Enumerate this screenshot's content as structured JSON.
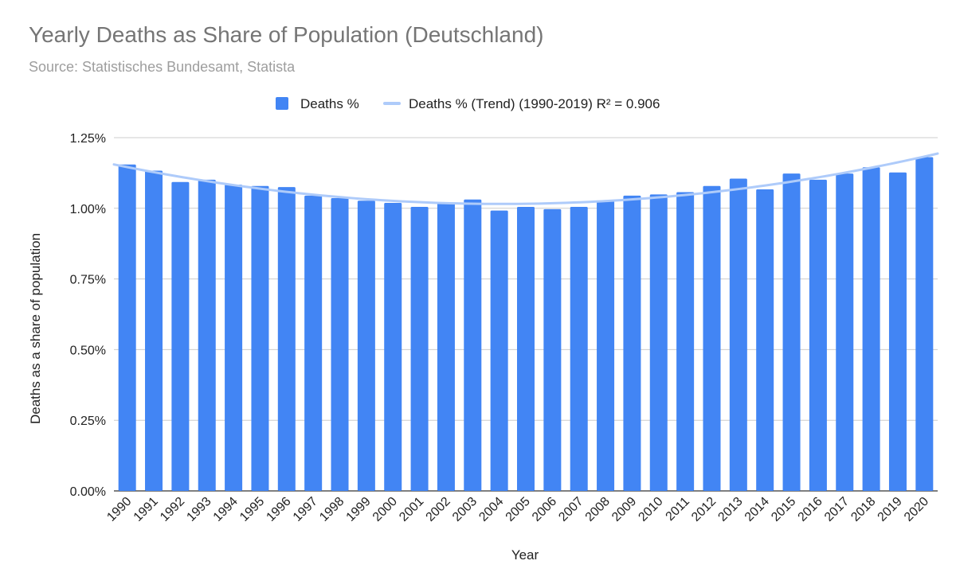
{
  "chart_data": {
    "type": "bar",
    "title": "Yearly Deaths as Share of Population (Deutschland)",
    "subtitle": "Source: Statistisches Bundesamt, Statista",
    "xlabel": "Year",
    "ylabel": "Deaths as a share of population",
    "ylim": [
      0,
      1.25
    ],
    "yticks": [
      "0.00%",
      "0.25%",
      "0.50%",
      "0.75%",
      "1.00%",
      "1.25%"
    ],
    "grid": true,
    "legend_position": "top",
    "categories": [
      "1990",
      "1991",
      "1992",
      "1993",
      "1994",
      "1995",
      "1996",
      "1997",
      "1998",
      "1999",
      "2000",
      "2001",
      "2002",
      "2003",
      "2004",
      "2005",
      "2006",
      "2007",
      "2008",
      "2009",
      "2010",
      "2011",
      "2012",
      "2013",
      "2014",
      "2015",
      "2016",
      "2017",
      "2018",
      "2019",
      "2020"
    ],
    "series": [
      {
        "name": "Deaths %",
        "color": "#4285f4",
        "values": [
          1.155,
          1.133,
          1.093,
          1.101,
          1.084,
          1.079,
          1.075,
          1.045,
          1.036,
          1.027,
          1.019,
          1.005,
          1.019,
          1.031,
          0.992,
          1.005,
          0.997,
          1.005,
          1.027,
          1.045,
          1.049,
          1.057,
          1.079,
          1.105,
          1.067,
          1.123,
          1.101,
          1.123,
          1.145,
          1.127,
          1.181
        ]
      }
    ],
    "trendline": {
      "name": "Deaths % (Trend) (1990-2019) R² = 0.906",
      "color": "#aecbfa",
      "type": "polynomial",
      "range": [
        "1990",
        "2019"
      ],
      "r_squared": 0.906
    }
  }
}
